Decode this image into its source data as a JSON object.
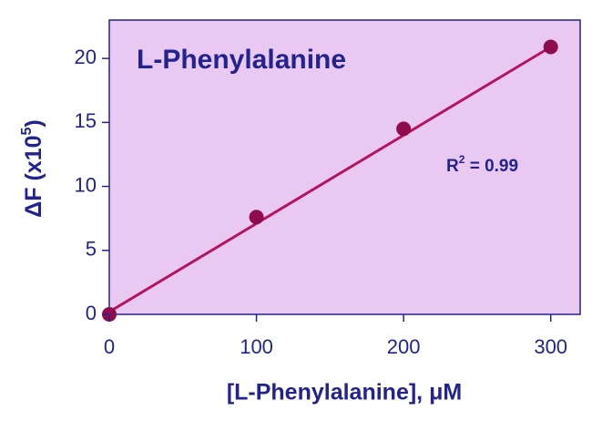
{
  "chart_data": {
    "type": "scatter",
    "title": "L-Phenylalanine",
    "xlabel": "[L-Phenylalanine], μM",
    "ylabel": "ΔF (x10",
    "ylabel_exponent": "5",
    "ylabel_suffix": ")",
    "annotation": {
      "text": "R",
      "exponent": "2",
      "suffix": " = 0.99"
    },
    "series": [
      {
        "x": [
          0,
          100,
          200,
          300
        ],
        "values": [
          0,
          7.6,
          14.5,
          20.9
        ],
        "color": "#8e0c4e"
      }
    ],
    "fit_line": {
      "x": [
        0,
        300
      ],
      "values": [
        0.2,
        20.9
      ],
      "color": "#b3165f"
    },
    "xlim": [
      0,
      320
    ],
    "xticks": [
      0,
      100,
      200,
      300
    ],
    "ylim": [
      0,
      23
    ],
    "yticks": [
      0,
      5,
      10,
      15,
      20
    ],
    "background": "#e9c9f1",
    "text_color": "#23238f"
  }
}
